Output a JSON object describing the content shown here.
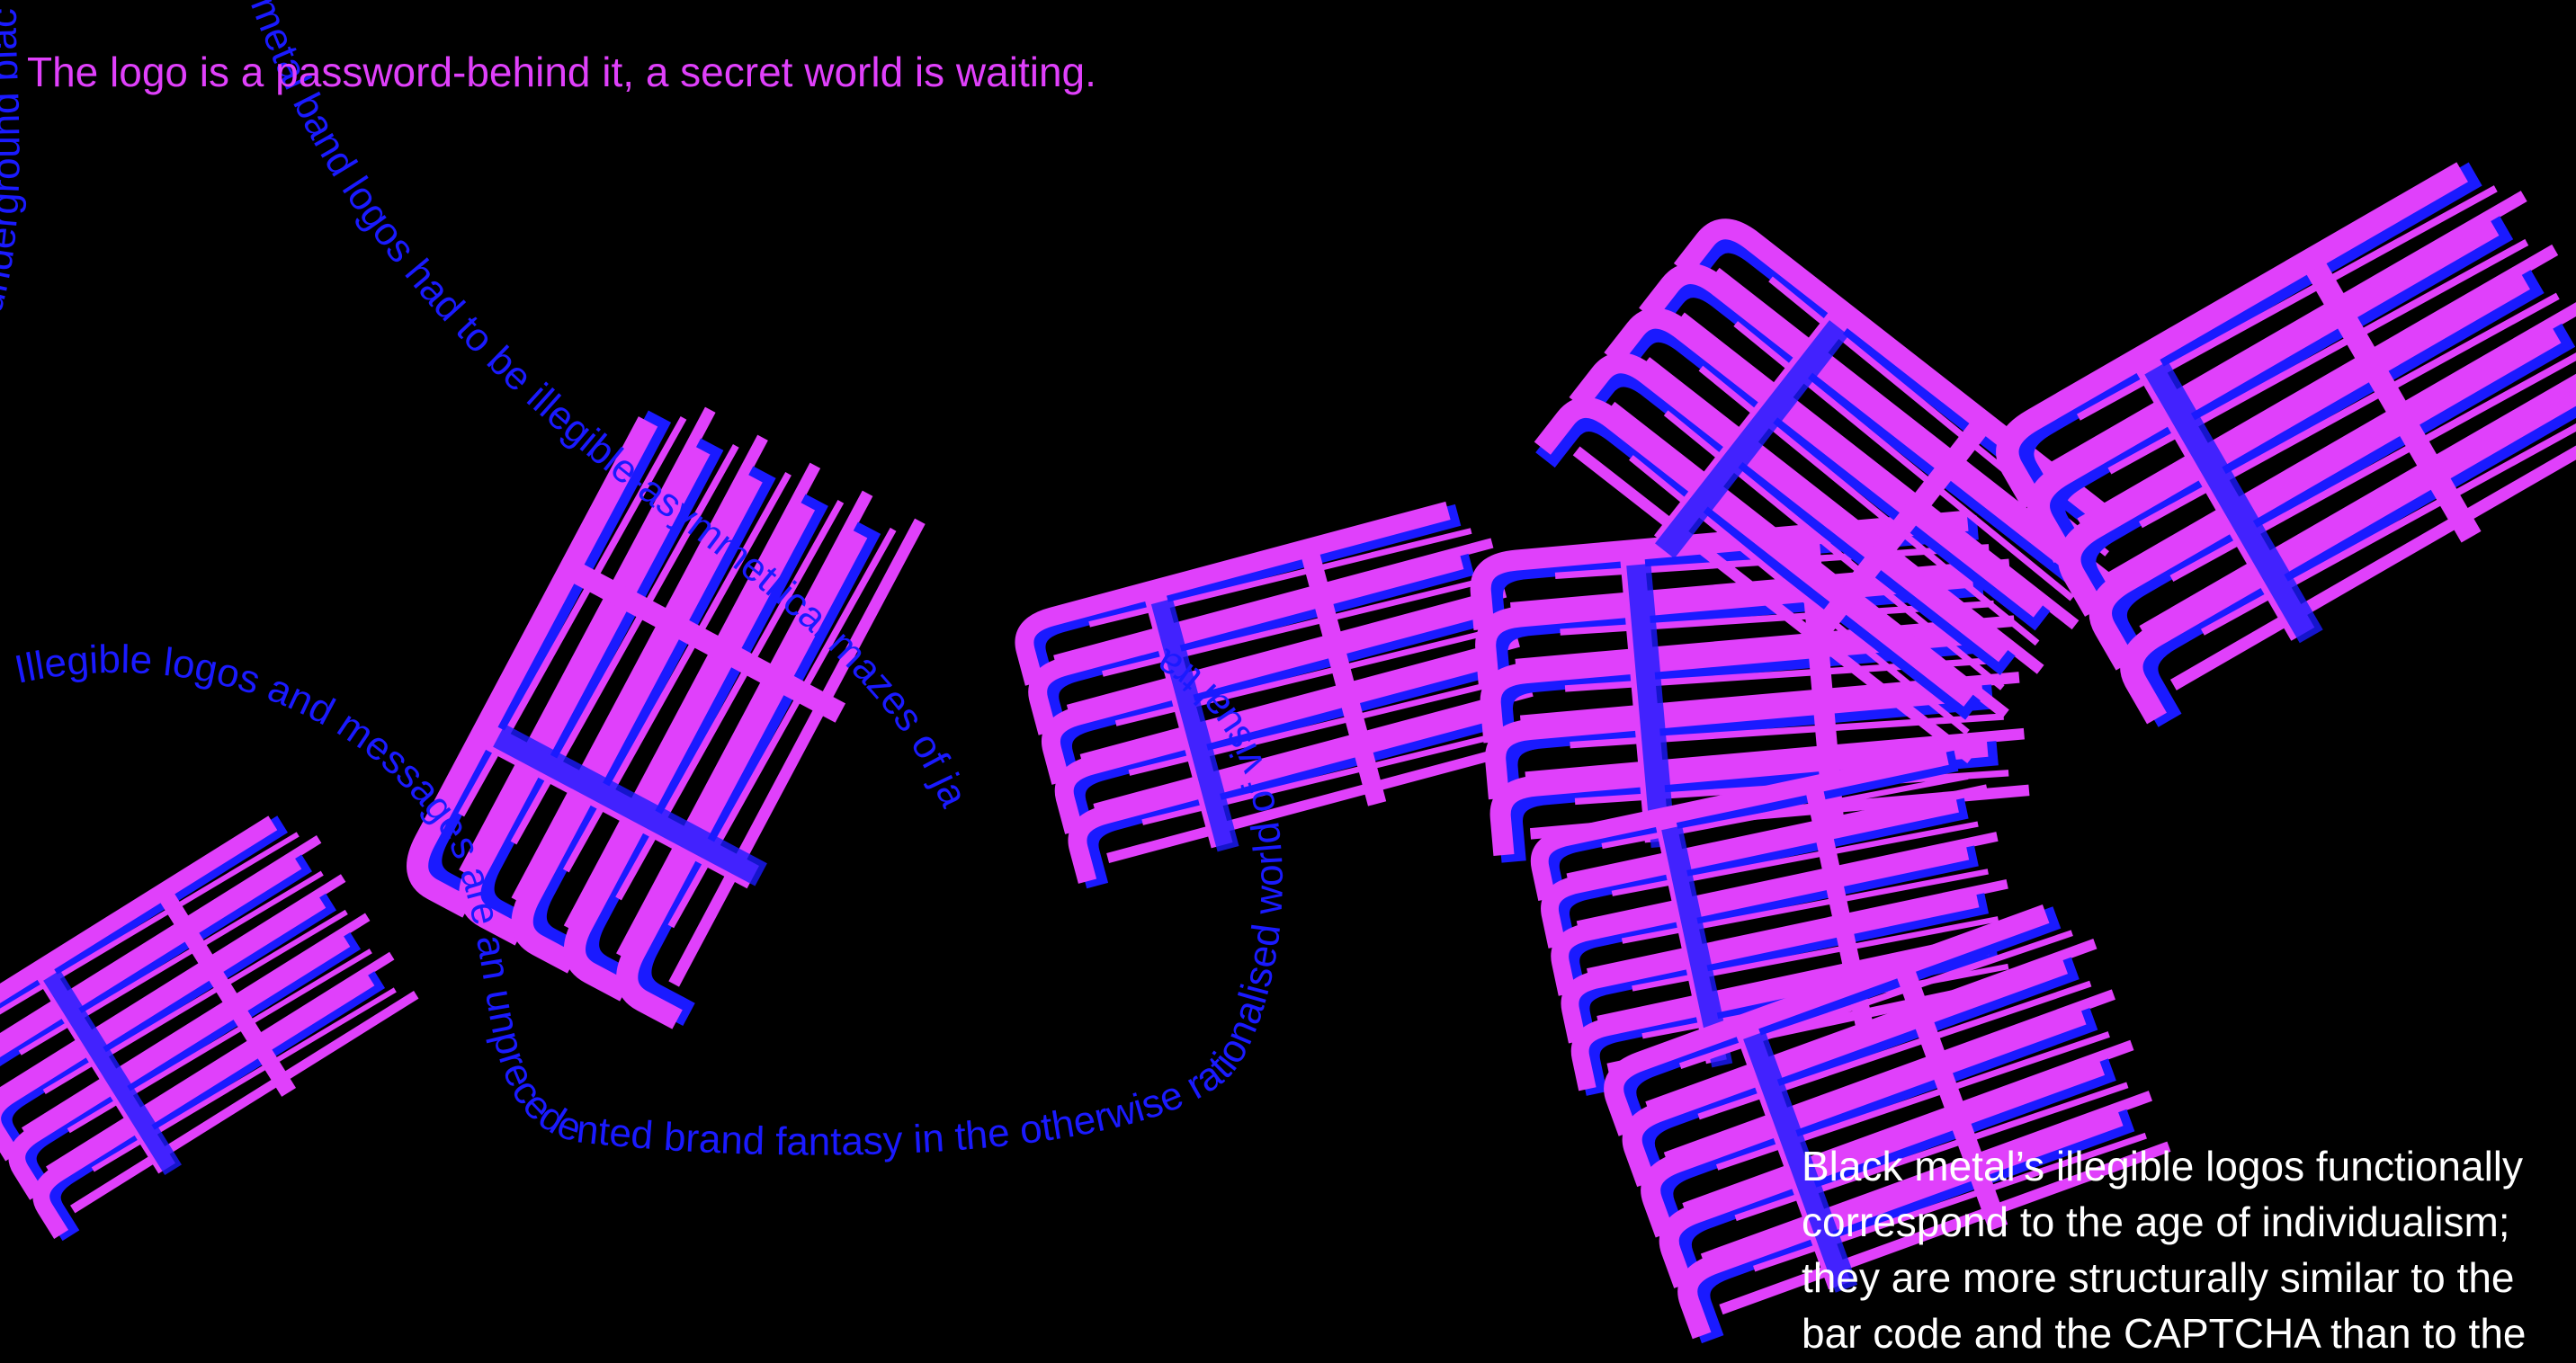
{
  "colors": {
    "background": "#000000",
    "magenta": "#e040fb",
    "blue": "#1a1aff",
    "white": "#ffffff"
  },
  "headline": "The logo is a password-behind it, a secret world is waiting.",
  "body_lines": [
    "Black metal’s illegible logos functionally",
    "correspond to the age of individualism;",
    "they are more structurally similar to the",
    "bar code and the CAPTCHA than to the"
  ],
  "ribbon_text": {
    "segment_1": "underground black metal band logos had to be illegible-asymmetrical mazes of jagged forms.",
    "segment_2": "Illegible logos and messages are an unprecedented brand fantasy in the otherwise rationalised world of visual tra"
  }
}
